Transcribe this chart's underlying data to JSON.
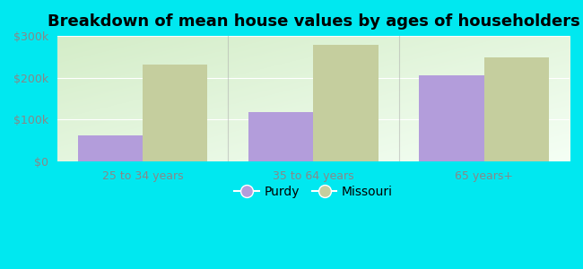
{
  "title": "Breakdown of mean house values by ages of householders",
  "categories": [
    "25 to 34 years",
    "35 to 64 years",
    "65 years+"
  ],
  "purdy_values": [
    62000,
    118000,
    205000
  ],
  "missouri_values": [
    232000,
    278000,
    248000
  ],
  "ylim": [
    0,
    300000
  ],
  "yticks": [
    0,
    100000,
    200000,
    300000
  ],
  "ytick_labels": [
    "$0",
    "$100k",
    "$200k",
    "$300k"
  ],
  "bar_width": 0.38,
  "purdy_color": "#b39ddb",
  "missouri_color": "#c5ce9e",
  "background_color": "#00e8f0",
  "legend_labels": [
    "Purdy",
    "Missouri"
  ],
  "title_fontsize": 13,
  "tick_fontsize": 9,
  "legend_fontsize": 10,
  "tick_color": "#888888",
  "grid_color": "#ffffff",
  "divider_color": "#aaaaaa"
}
